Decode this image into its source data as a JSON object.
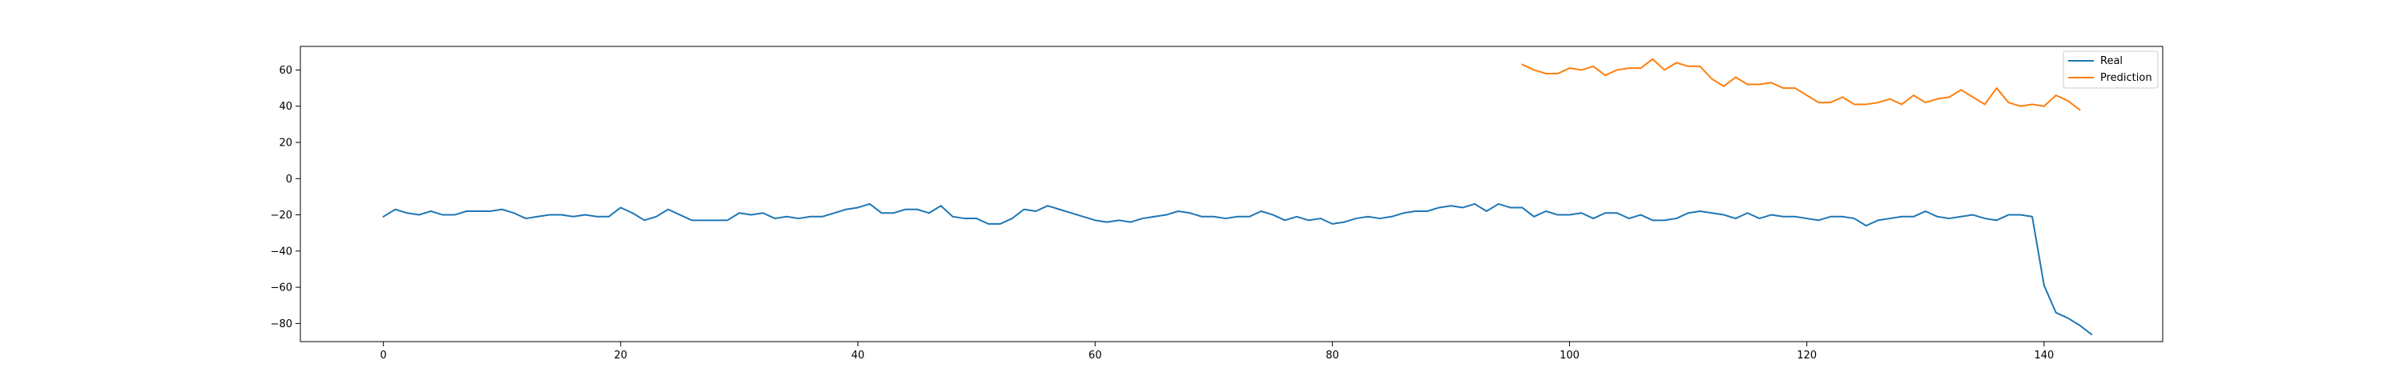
{
  "chart_data": {
    "type": "line",
    "title": "",
    "xlabel": "",
    "ylabel": "",
    "xlim": [
      -7,
      150
    ],
    "ylim": [
      -90,
      73
    ],
    "x_ticks": [
      0,
      20,
      40,
      60,
      80,
      100,
      120,
      140
    ],
    "y_ticks": [
      -80,
      -60,
      -40,
      -20,
      0,
      20,
      40,
      60
    ],
    "grid": false,
    "legend_position": "top-right",
    "series": [
      {
        "name": "Real",
        "color": "#1f77b4",
        "x_start": 0,
        "values": [
          -21,
          -17,
          -19,
          -20,
          -18,
          -20,
          -20,
          -18,
          -18,
          -18,
          -17,
          -19,
          -22,
          -21,
          -20,
          -20,
          -21,
          -20,
          -21,
          -21,
          -16,
          -19,
          -23,
          -21,
          -17,
          -20,
          -23,
          -23,
          -23,
          -23,
          -19,
          -20,
          -19,
          -22,
          -21,
          -22,
          -21,
          -21,
          -19,
          -17,
          -16,
          -14,
          -19,
          -19,
          -17,
          -17,
          -19,
          -15,
          -21,
          -22,
          -22,
          -25,
          -25,
          -22,
          -17,
          -18,
          -15,
          -17,
          -19,
          -21,
          -23,
          -24,
          -23,
          -24,
          -22,
          -21,
          -20,
          -18,
          -19,
          -21,
          -21,
          -22,
          -21,
          -21,
          -18,
          -20,
          -23,
          -21,
          -23,
          -22,
          -25,
          -24,
          -22,
          -21,
          -22,
          -21,
          -19,
          -18,
          -18,
          -16,
          -15,
          -16,
          -14,
          -18,
          -14,
          -16,
          -16,
          -21,
          -18,
          -20,
          -20,
          -19,
          -22,
          -19,
          -19,
          -22,
          -20,
          -23,
          -23,
          -22,
          -19,
          -18,
          -19,
          -20,
          -22,
          -19,
          -22,
          -20,
          -21,
          -21,
          -22,
          -23,
          -21,
          -21,
          -22,
          -26,
          -23,
          -22,
          -21,
          -21,
          -18,
          -21,
          -22,
          -21,
          -20,
          -22,
          -23,
          -20,
          -20,
          -21,
          -59,
          -74,
          -77,
          -81,
          -86
        ]
      },
      {
        "name": "Prediction",
        "color": "#ff7f0e",
        "x_start": 96,
        "values": [
          63,
          60,
          58,
          58,
          61,
          60,
          62,
          57,
          60,
          61,
          61,
          66,
          60,
          64,
          62,
          62,
          55,
          51,
          56,
          52,
          52,
          53,
          50,
          50,
          46,
          42,
          42,
          45,
          41,
          41,
          42,
          44,
          41,
          46,
          42,
          44,
          45,
          49,
          45,
          41,
          50,
          42,
          40,
          41,
          40,
          46,
          43,
          38
        ]
      }
    ]
  }
}
